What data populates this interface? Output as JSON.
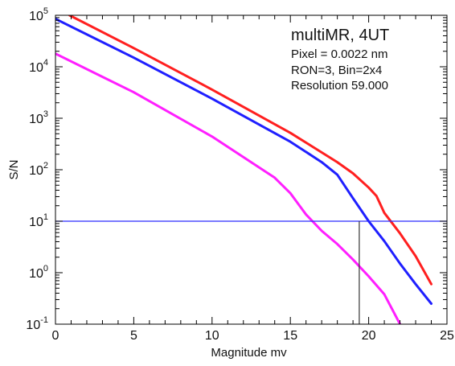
{
  "annotations": {
    "title": "multiMR, 4UT",
    "lines": [
      "Pixel = 0.0022 nm",
      "RON=3, Bin=2x4",
      "Resolution 59.000"
    ]
  },
  "chart_data": {
    "type": "line",
    "xlabel": "Magnitude mv",
    "ylabel": "S/N",
    "xlim": [
      0,
      25
    ],
    "ylim": [
      0.1,
      100000
    ],
    "yscale": "log",
    "grid": false,
    "x_ticks": [
      "0",
      "5",
      "10",
      "15",
      "20",
      "25"
    ],
    "y_ticks": [
      {
        "base": "10",
        "exp": "-1"
      },
      {
        "base": "10",
        "exp": "0"
      },
      {
        "base": "10",
        "exp": "1"
      },
      {
        "base": "10",
        "exp": "2"
      },
      {
        "base": "10",
        "exp": "3"
      },
      {
        "base": "10",
        "exp": "4"
      },
      {
        "base": "10",
        "exp": "5"
      }
    ],
    "series": [
      {
        "color": "#ff1f1f",
        "x": [
          0.9,
          5,
          10,
          15,
          18,
          19,
          20,
          20.5,
          21,
          22,
          23,
          24
        ],
        "y": [
          100000,
          23000,
          3600,
          520,
          140,
          85,
          45,
          31,
          14.5,
          5.8,
          2.1,
          0.6
        ]
      },
      {
        "color": "#1f1fff",
        "x": [
          0,
          5,
          10,
          15,
          17,
          18,
          19,
          20,
          21,
          22,
          23,
          24
        ],
        "y": [
          85000,
          15000,
          2400,
          350,
          140,
          80,
          28,
          10,
          4.1,
          1.5,
          0.6,
          0.25
        ]
      },
      {
        "color": "#ff1fff",
        "x": [
          0,
          5,
          10,
          14,
          15,
          16,
          17,
          18,
          19,
          20,
          21,
          22
        ],
        "y": [
          18000,
          3200,
          440,
          70,
          35,
          13.5,
          6.5,
          3.6,
          1.8,
          0.85,
          0.38,
          0.1
        ]
      }
    ],
    "reference_lines": [
      {
        "orientation": "horizontal",
        "value": 10,
        "color": "#2b2bff"
      },
      {
        "orientation": "vertical",
        "value": 19.4,
        "from": 0.1,
        "to": 10,
        "color": "#333333"
      }
    ]
  }
}
